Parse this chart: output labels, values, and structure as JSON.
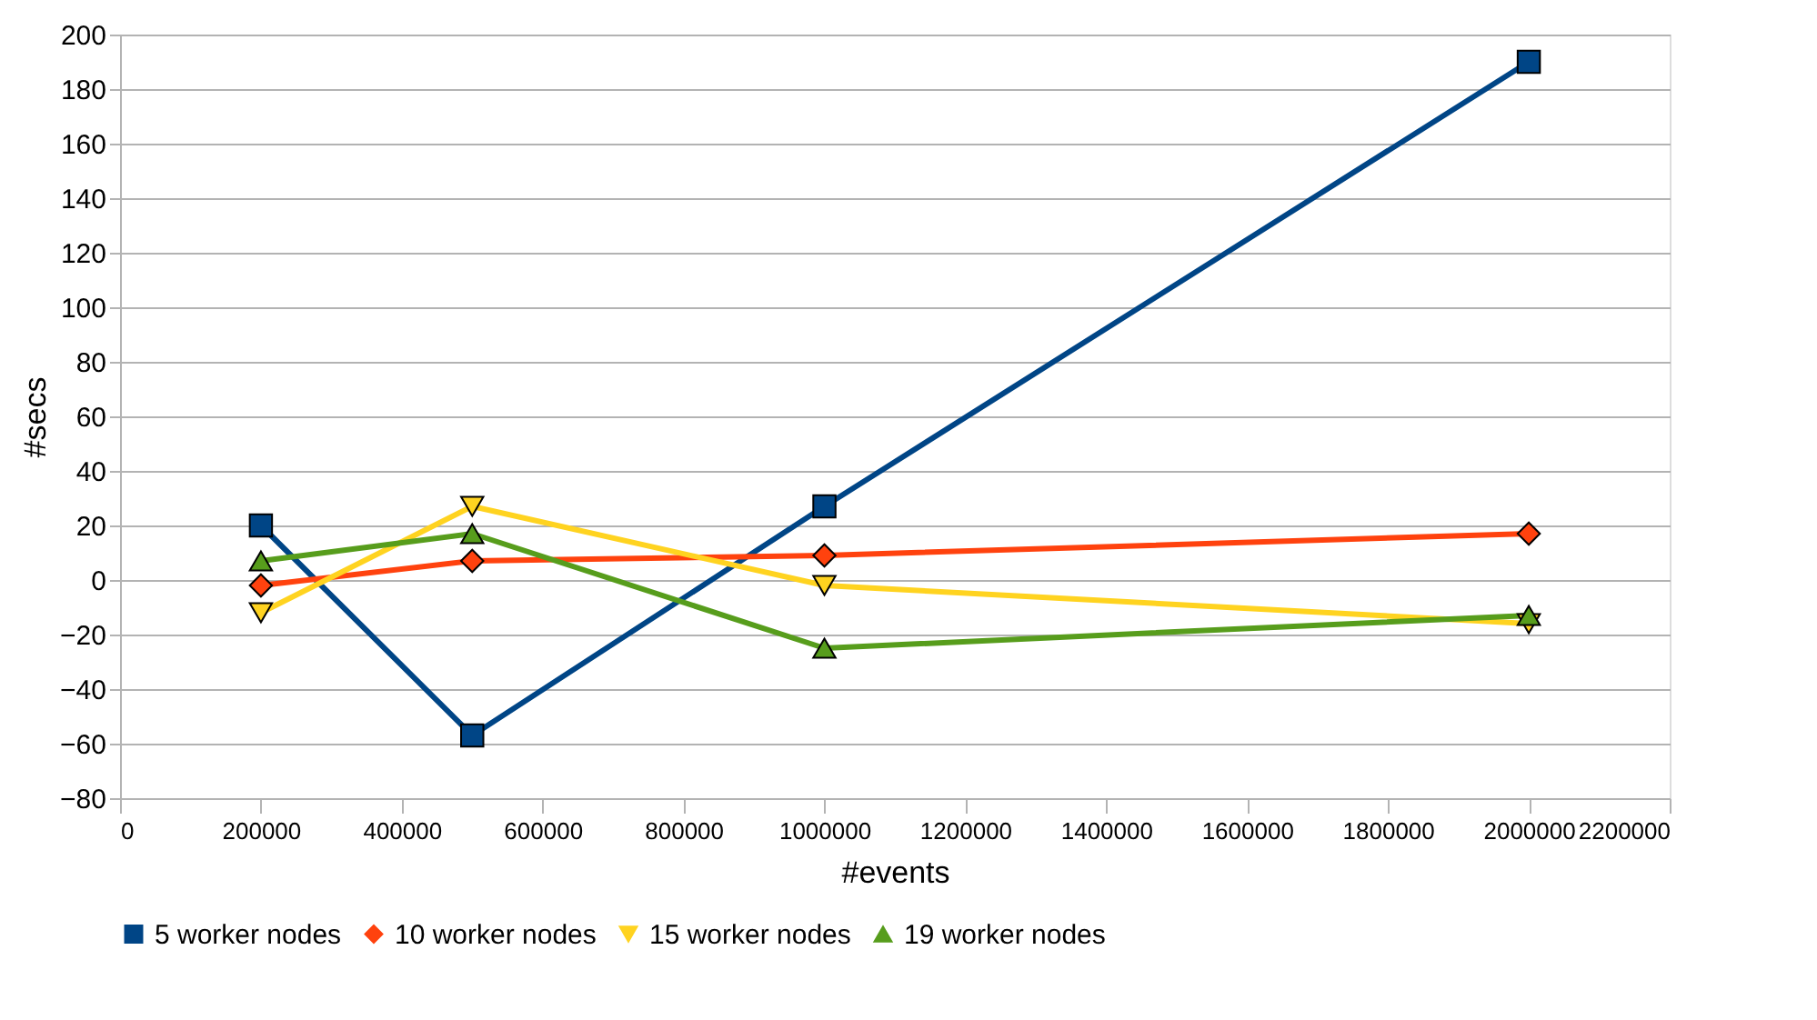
{
  "chart_data": {
    "type": "line",
    "xlabel": "#events",
    "ylabel": "#secs",
    "x": [
      200000,
      500000,
      1000000,
      2000000
    ],
    "series": [
      {
        "name": "5 worker nodes",
        "color": "#004586",
        "marker": "square",
        "values": [
          20,
          -57,
          27,
          190
        ]
      },
      {
        "name": "10 worker nodes",
        "color": "#ff420e",
        "marker": "diamond",
        "values": [
          -2,
          7,
          9,
          17
        ]
      },
      {
        "name": "15 worker nodes",
        "color": "#ffd320",
        "marker": "triangle-down",
        "values": [
          -12,
          27,
          -2,
          -16
        ]
      },
      {
        "name": "19 worker nodes",
        "color": "#579d1c",
        "marker": "triangle",
        "values": [
          7,
          17,
          -25,
          -13
        ]
      }
    ],
    "xlim": [
      0,
      2200000
    ],
    "xticks": [
      0,
      200000,
      400000,
      600000,
      800000,
      1000000,
      1200000,
      1400000,
      1600000,
      1800000,
      2000000,
      2200000
    ],
    "ylim": [
      -80,
      200
    ],
    "yticks": [
      -80,
      -60,
      -40,
      -20,
      0,
      20,
      40,
      60,
      80,
      100,
      120,
      140,
      160,
      180,
      200
    ],
    "grid": "y",
    "legend": "bottom",
    "line_style": "solid"
  }
}
